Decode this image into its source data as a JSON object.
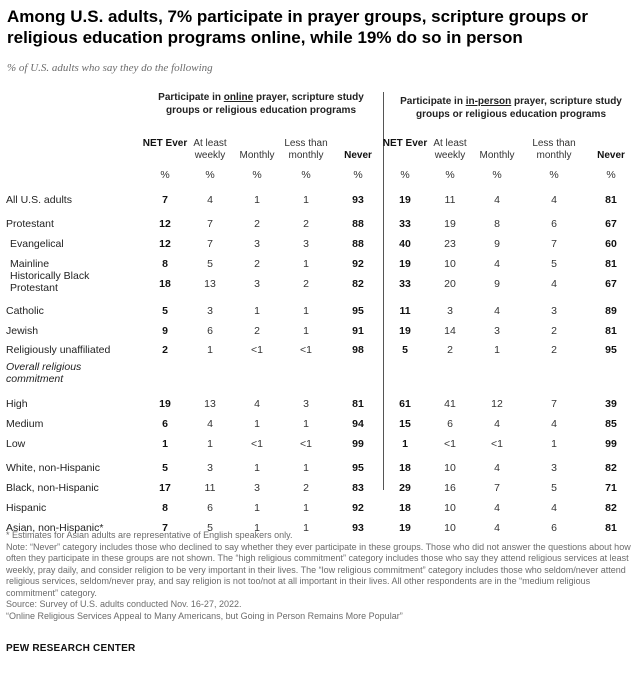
{
  "title": "Among U.S. adults, 7% participate in prayer groups, scripture groups or religious education programs online, while 19% do so in person",
  "subtitle": "% of U.S. adults who say they do the following",
  "groups": {
    "online": {
      "pre": "Participate in ",
      "u": "online",
      "post": " prayer, scripture study groups or religious education programs"
    },
    "inperson": {
      "pre": "Participate in ",
      "u": "in-person",
      "post": " prayer, scripture study groups or religious education programs"
    }
  },
  "columns": [
    {
      "label": "NET Ever",
      "bold": true
    },
    {
      "label": "At least weekly",
      "bold": false
    },
    {
      "label": "Monthly",
      "bold": false
    },
    {
      "label": "Less than monthly",
      "bold": false
    },
    {
      "label": "Never",
      "bold": true
    }
  ],
  "pct_sign": "%",
  "rows": [
    {
      "label": "All U.S. adults",
      "online": [
        "7",
        "4",
        "1",
        "1",
        "93"
      ],
      "inperson": [
        "19",
        "11",
        "4",
        "4",
        "81"
      ]
    },
    {
      "label": "Protestant",
      "online": [
        "12",
        "7",
        "2",
        "2",
        "88"
      ],
      "inperson": [
        "33",
        "19",
        "8",
        "6",
        "67"
      ]
    },
    {
      "label": "Evangelical",
      "indent": true,
      "online": [
        "12",
        "7",
        "3",
        "3",
        "88"
      ],
      "inperson": [
        "40",
        "23",
        "9",
        "7",
        "60"
      ]
    },
    {
      "label": "Mainline",
      "indent": true,
      "online": [
        "8",
        "5",
        "2",
        "1",
        "92"
      ],
      "inperson": [
        "19",
        "10",
        "4",
        "5",
        "81"
      ]
    },
    {
      "label": "Historically Black Protestant",
      "indent": true,
      "online": [
        "18",
        "13",
        "3",
        "2",
        "82"
      ],
      "inperson": [
        "33",
        "20",
        "9",
        "4",
        "67"
      ]
    },
    {
      "label": "Catholic",
      "online": [
        "5",
        "3",
        "1",
        "1",
        "95"
      ],
      "inperson": [
        "11",
        "3",
        "4",
        "3",
        "89"
      ]
    },
    {
      "label": "Jewish",
      "online": [
        "9",
        "6",
        "2",
        "1",
        "91"
      ],
      "inperson": [
        "19",
        "14",
        "3",
        "2",
        "81"
      ]
    },
    {
      "label": "Religiously unaffiliated",
      "online": [
        "2",
        "1",
        "<1",
        "<1",
        "98"
      ],
      "inperson": [
        "5",
        "2",
        "1",
        "2",
        "95"
      ]
    },
    {
      "label": "Overall religious commitment",
      "section": true
    },
    {
      "label": "High",
      "online": [
        "19",
        "13",
        "4",
        "3",
        "81"
      ],
      "inperson": [
        "61",
        "41",
        "12",
        "7",
        "39"
      ]
    },
    {
      "label": "Medium",
      "online": [
        "6",
        "4",
        "1",
        "1",
        "94"
      ],
      "inperson": [
        "15",
        "6",
        "4",
        "4",
        "85"
      ]
    },
    {
      "label": "Low",
      "online": [
        "1",
        "1",
        "<1",
        "<1",
        "99"
      ],
      "inperson": [
        "1",
        "<1",
        "<1",
        "1",
        "99"
      ]
    },
    {
      "label": "White, non-Hispanic",
      "online": [
        "5",
        "3",
        "1",
        "1",
        "95"
      ],
      "inperson": [
        "18",
        "10",
        "4",
        "3",
        "82"
      ]
    },
    {
      "label": "Black, non-Hispanic",
      "online": [
        "17",
        "11",
        "3",
        "2",
        "83"
      ],
      "inperson": [
        "29",
        "16",
        "7",
        "5",
        "71"
      ]
    },
    {
      "label": "Hispanic",
      "online": [
        "8",
        "6",
        "1",
        "1",
        "92"
      ],
      "inperson": [
        "18",
        "10",
        "4",
        "4",
        "82"
      ]
    },
    {
      "label": "Asian, non-Hispanic*",
      "online": [
        "7",
        "5",
        "1",
        "1",
        "93"
      ],
      "inperson": [
        "19",
        "10",
        "4",
        "6",
        "81"
      ]
    }
  ],
  "notes": [
    "* Estimates for Asian adults are representative of English speakers only.",
    "Note: “Never” category includes those who declined to say whether they ever participate in these groups. Those who did not answer the questions about how often they participate in these groups are not shown. The “high religious commitment” category includes those who say they attend religious services at least weekly, pray daily, and consider religion to be very important in their lives. The “low religious commitment” category includes those who seldom/never attend religious services, seldom/never pray, and say religion is not too/not at all important in their lives. All other respondents are in the “medium religious commitment” category.",
    "Source: Survey of U.S. adults conducted Nov. 16-27, 2022.",
    "“Online Religious Services Appeal to Many Americans, but Going in Person Remains More Popular”"
  ],
  "brand": "PEW RESEARCH CENTER"
}
